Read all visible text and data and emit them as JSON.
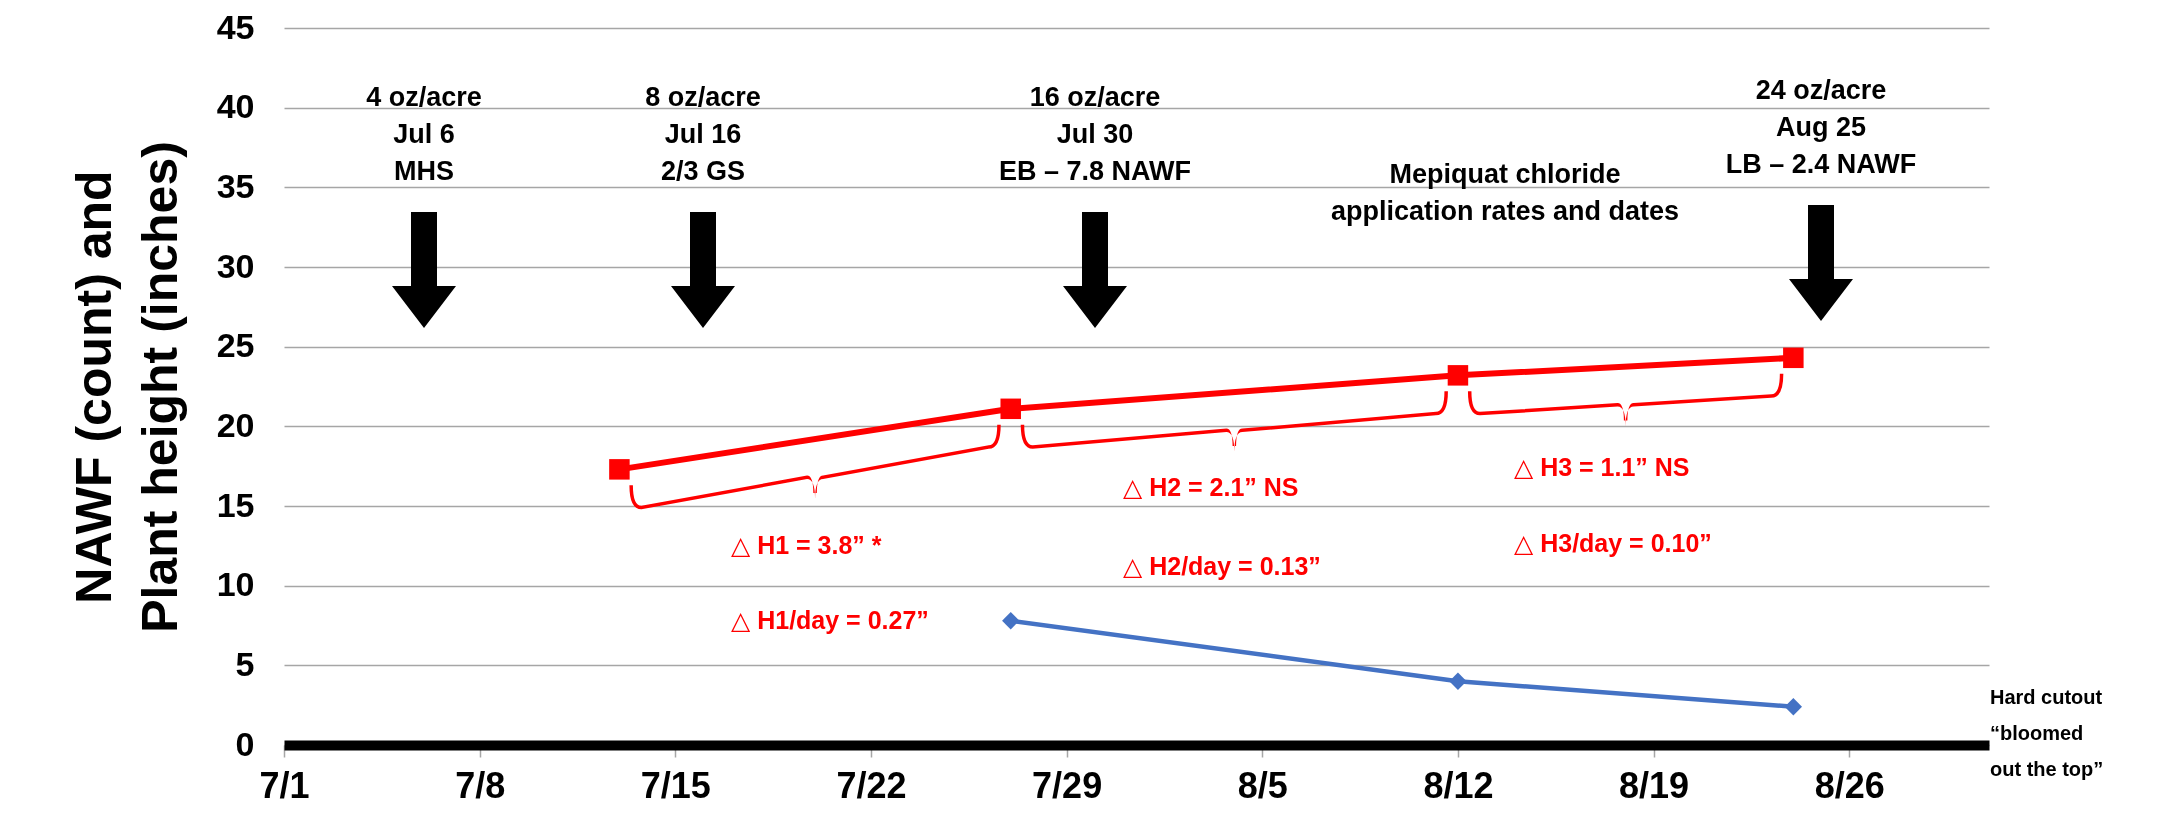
{
  "chart_data": {
    "type": "line",
    "ylabel": "NAWF (count) and Plant height (inches)",
    "xlim": [
      "--07-01",
      "--08-31"
    ],
    "xticks": [
      {
        "value": "--07-01",
        "label": "7/1"
      },
      {
        "value": "--07-08",
        "label": "7/8"
      },
      {
        "value": "--07-15",
        "label": "7/15"
      },
      {
        "value": "--07-22",
        "label": "7/22"
      },
      {
        "value": "--07-29",
        "label": "7/29"
      },
      {
        "value": "--08-05",
        "label": "8/5"
      },
      {
        "value": "--08-12",
        "label": "8/12"
      },
      {
        "value": "--08-19",
        "label": "8/19"
      },
      {
        "value": "--08-26",
        "label": "8/26"
      }
    ],
    "ylim": [
      0,
      45
    ],
    "yticks": [
      0,
      5,
      10,
      15,
      20,
      25,
      30,
      35,
      40,
      45
    ],
    "grid": "y",
    "legend": false,
    "series": [
      {
        "color": "#ff0000",
        "marker": "square",
        "x": [
          "--07-13",
          "--07-27",
          "--08-12",
          "--08-24"
        ],
        "values": [
          17.3,
          21.1,
          23.2,
          24.3
        ]
      },
      {
        "color": "#4472c4",
        "marker": "diamond",
        "x": [
          "--07-27",
          "--08-12",
          "--08-24"
        ],
        "values": [
          7.8,
          4.0,
          2.4
        ]
      }
    ],
    "annotations": [
      "4 oz/acre\nJul 6\nMHS",
      "8 oz/acre\nJul 16\n2/3 GS",
      "16 oz/acre\nJul 30\nEB – 7.8 NAWF",
      "24 oz/acre\nAug 25\nLB – 2.4 NAWF",
      "Mepiquat chloride\napplication rates and dates",
      "△ H1 = 3.8” *",
      "△ H1/day = 0.27”",
      "△ H2 = 2.1” NS",
      "△ H2/day = 0.13”",
      "△ H3 = 1.1” NS",
      "△ H3/day = 0.10”",
      "Hard cutout\n“bloomed\nout the top”"
    ]
  }
}
